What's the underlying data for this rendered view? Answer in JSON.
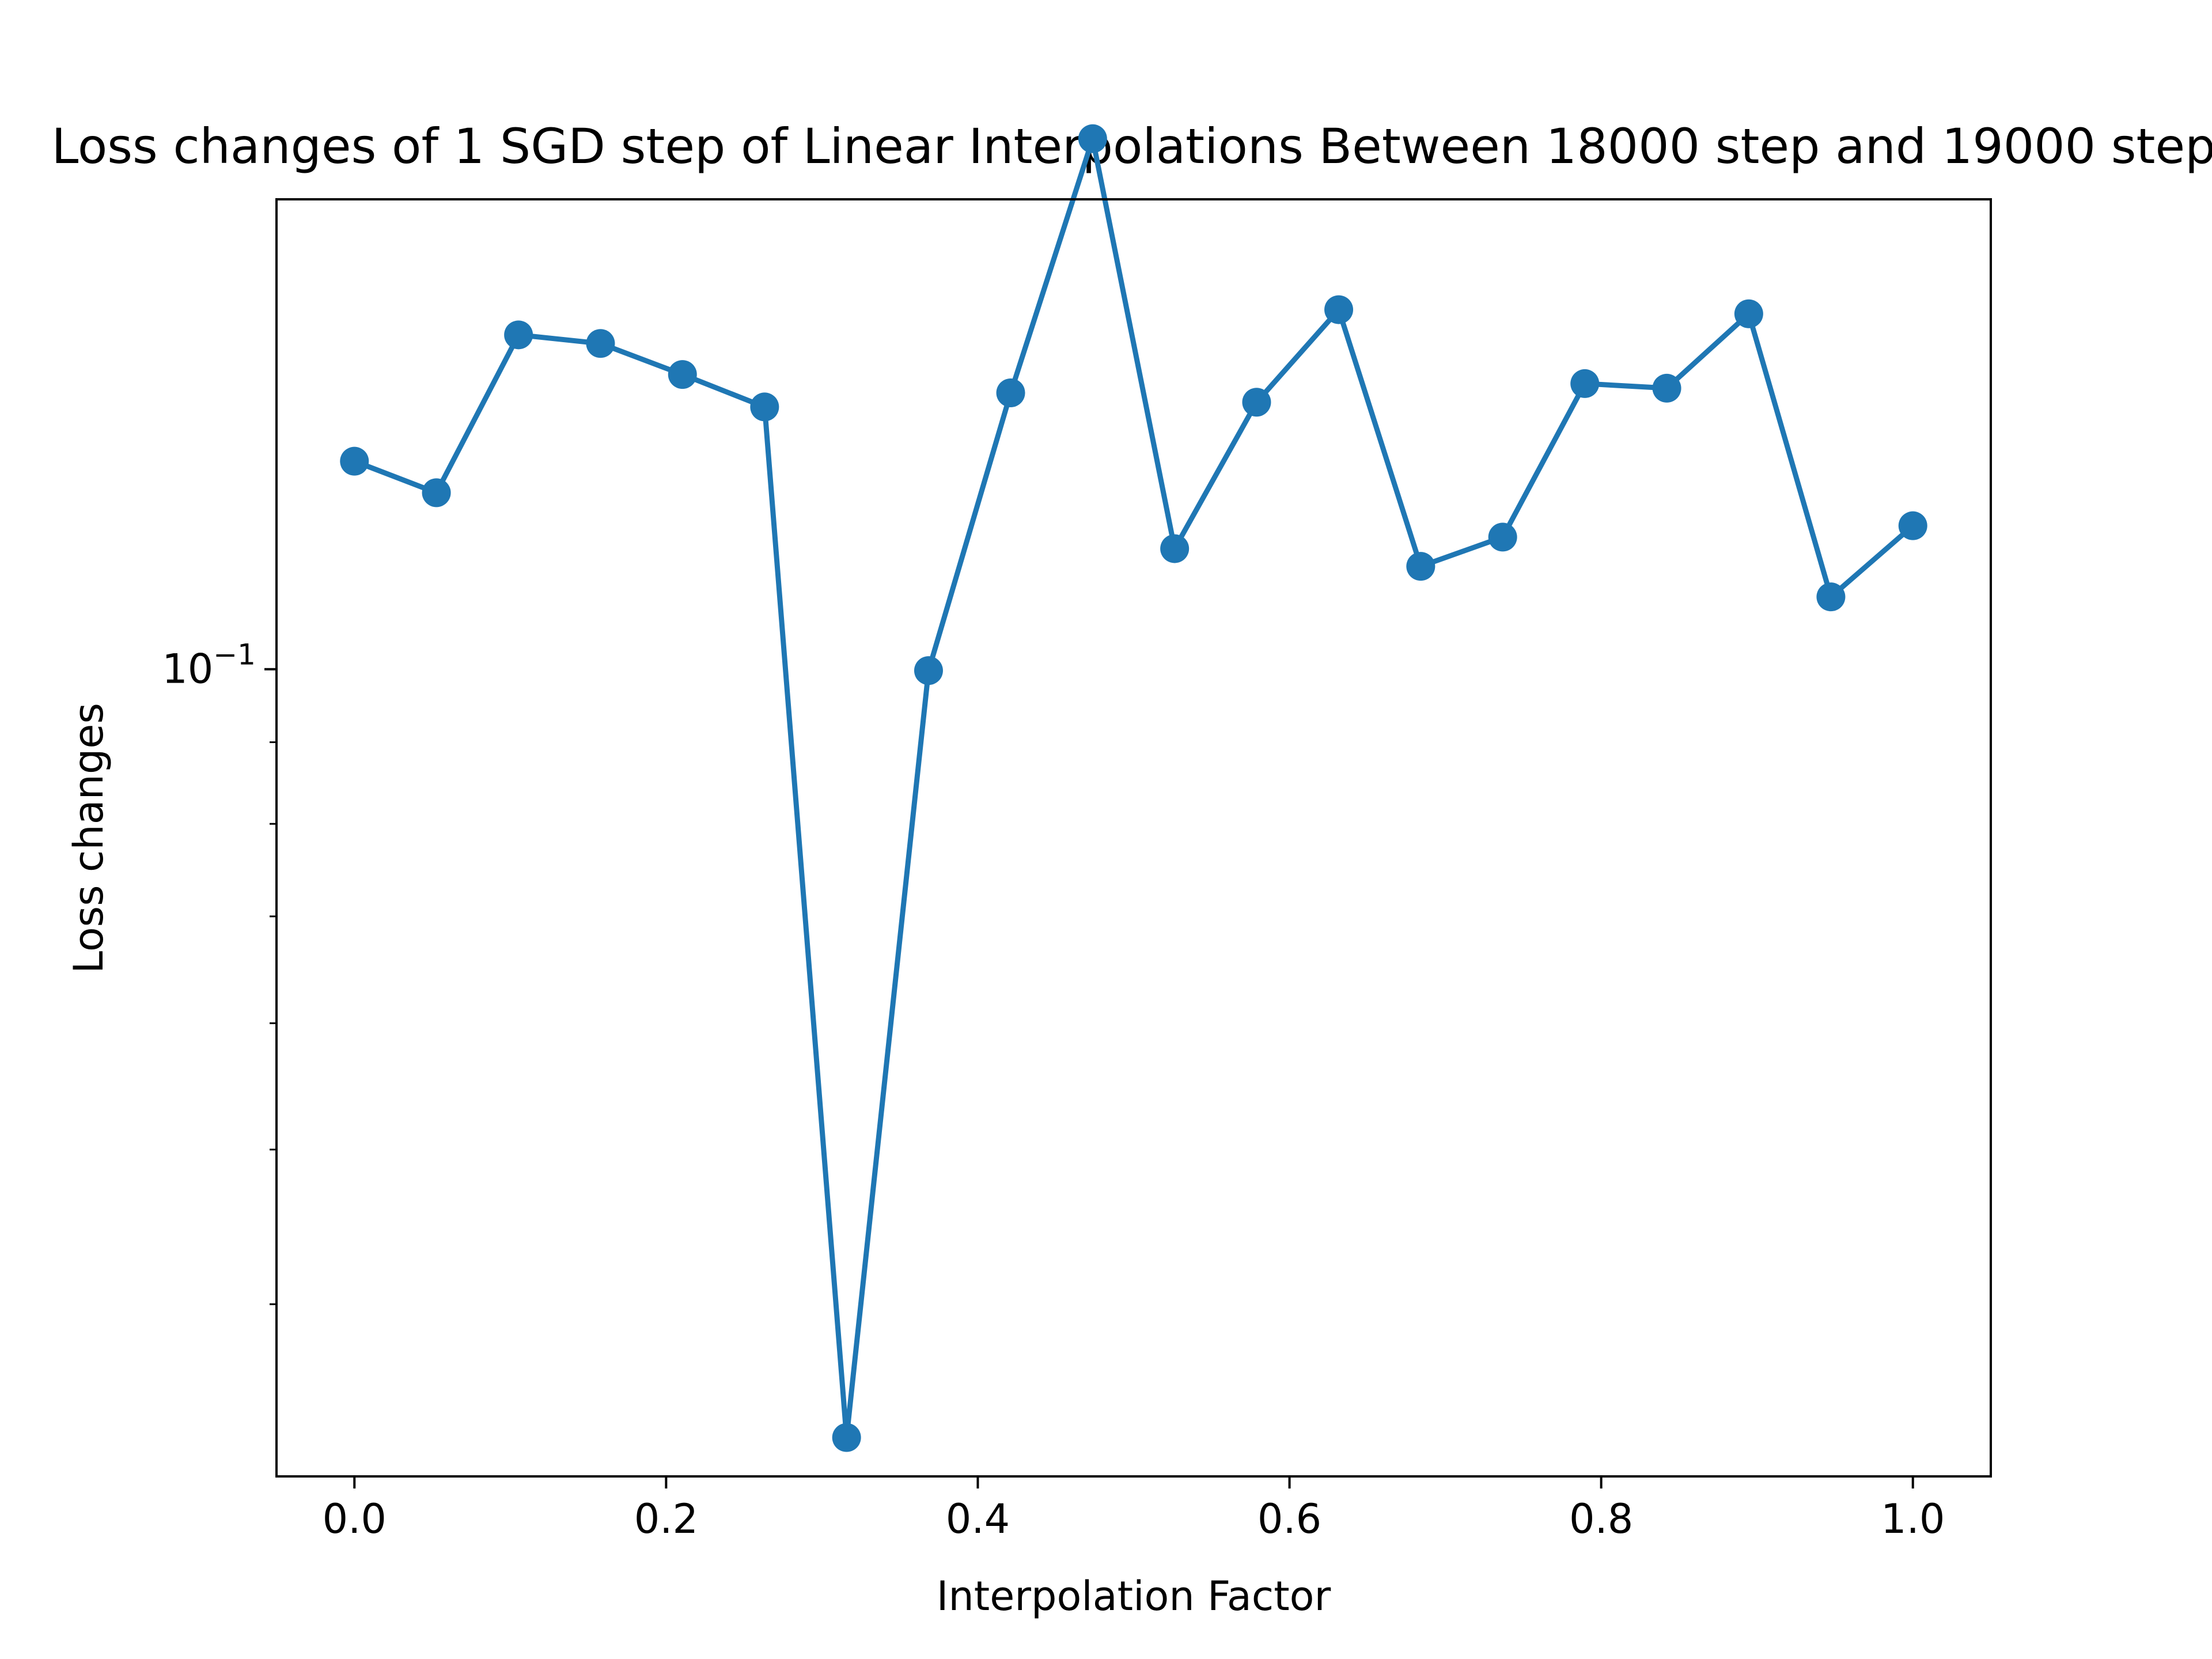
{
  "chart_data": {
    "type": "line",
    "title": "Loss changes of 1 SGD step of Linear Interpolations Between 18000 step and 19000 step",
    "xlabel": "Interpolation Factor",
    "ylabel": "Loss changes",
    "y_scale": "log",
    "grid": false,
    "legend": "none",
    "xlim": [
      -0.05,
      1.05
    ],
    "ylim": [
      0.0312,
      0.197
    ],
    "x_ticks": [
      {
        "value": 0.0,
        "label": "0.0"
      },
      {
        "value": 0.2,
        "label": "0.2"
      },
      {
        "value": 0.4,
        "label": "0.4"
      },
      {
        "value": 0.6,
        "label": "0.6"
      },
      {
        "value": 0.8,
        "label": "0.8"
      },
      {
        "value": 1.0,
        "label": "1.0"
      }
    ],
    "y_major_ticks": [
      {
        "value": 0.1,
        "base": "10",
        "exponent": "−1"
      }
    ],
    "y_minor_ticks": [
      0.04,
      0.05,
      0.06,
      0.07,
      0.08,
      0.09
    ],
    "series": [
      {
        "color": "#1f77b4",
        "marker": "circle",
        "x": [
          0.0,
          0.0526,
          0.1053,
          0.1579,
          0.2105,
          0.2632,
          0.3158,
          0.3684,
          0.4211,
          0.4737,
          0.5263,
          0.5789,
          0.6316,
          0.6842,
          0.7368,
          0.7895,
          0.8421,
          0.8947,
          0.9474,
          1.0
        ],
        "y": [
          0.135,
          0.129,
          0.162,
          0.16,
          0.153,
          0.146,
          0.033,
          0.0998,
          0.149,
          0.215,
          0.119,
          0.147,
          0.168,
          0.116,
          0.121,
          0.151,
          0.15,
          0.167,
          0.111,
          0.123
        ]
      }
    ]
  }
}
